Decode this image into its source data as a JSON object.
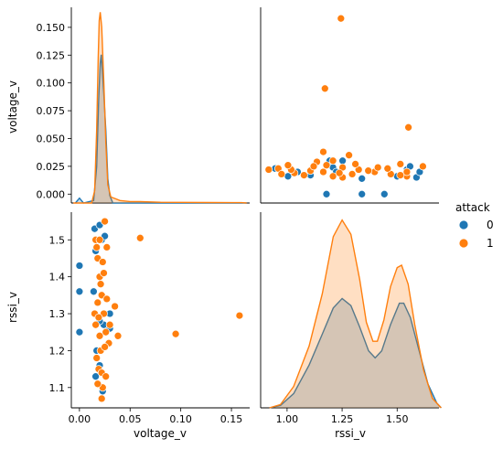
{
  "chart_data": {
    "type": "pairplot",
    "variables": [
      "voltage_v",
      "rssi_v"
    ],
    "hue": "attack",
    "legend": {
      "title": "attack",
      "placement": "right",
      "entries": [
        {
          "label": "0",
          "color": "#1f77b4"
        },
        {
          "label": "1",
          "color": "#ff7f0e"
        }
      ]
    },
    "axes": {
      "voltage_v": {
        "label": "voltage_v",
        "range": [
          -0.008,
          0.168
        ],
        "ticks": [
          {
            "value": 0.0,
            "label": "0.000"
          },
          {
            "value": 0.025,
            "label": "0.025"
          },
          {
            "value": 0.05,
            "label": "0.050"
          },
          {
            "value": 0.075,
            "label": "0.075"
          },
          {
            "value": 0.1,
            "label": "0.100"
          },
          {
            "value": 0.125,
            "label": "0.125"
          },
          {
            "value": 0.15,
            "label": "0.150"
          }
        ],
        "ticks_short": [
          {
            "value": 0.0,
            "label": "0.00"
          },
          {
            "value": 0.05,
            "label": "0.05"
          },
          {
            "value": 0.1,
            "label": "0.10"
          },
          {
            "value": 0.15,
            "label": "0.15"
          }
        ]
      },
      "rssi_v": {
        "label": "rssi_v",
        "range": [
          1.045,
          1.575
        ],
        "kde_range": [
          0.88,
          1.69
        ],
        "ticks": [
          {
            "value": 1.1,
            "label": "1.1"
          },
          {
            "value": 1.2,
            "label": "1.2"
          },
          {
            "value": 1.3,
            "label": "1.3"
          },
          {
            "value": 1.4,
            "label": "1.4"
          },
          {
            "value": 1.5,
            "label": "1.5"
          }
        ],
        "ticks_x": [
          {
            "value": 1.0,
            "label": "1.00"
          },
          {
            "value": 1.25,
            "label": "1.25"
          },
          {
            "value": 1.5,
            "label": "1.50"
          }
        ]
      }
    },
    "kde_voltage": {
      "series": [
        {
          "name": "0",
          "color": "#1f77b4",
          "points": [
            [
              -0.004,
              0.0
            ],
            [
              0.0,
              0.004
            ],
            [
              0.004,
              0.0
            ],
            [
              0.014,
              0.002
            ],
            [
              0.017,
              0.03
            ],
            [
              0.019,
              0.085
            ],
            [
              0.0205,
              0.115
            ],
            [
              0.0215,
              0.122
            ],
            [
              0.0225,
              0.11
            ],
            [
              0.024,
              0.09
            ],
            [
              0.026,
              0.06
            ],
            [
              0.028,
              0.02
            ],
            [
              0.03,
              0.006
            ],
            [
              0.033,
              0.0
            ],
            [
              0.165,
              0.0
            ]
          ]
        },
        {
          "name": "1",
          "color": "#ff7f0e",
          "points": [
            [
              -0.006,
              0.0
            ],
            [
              0.012,
              0.0
            ],
            [
              0.015,
              0.01
            ],
            [
              0.017,
              0.06
            ],
            [
              0.0185,
              0.12
            ],
            [
              0.0195,
              0.15
            ],
            [
              0.0205,
              0.157
            ],
            [
              0.022,
              0.145
            ],
            [
              0.024,
              0.1
            ],
            [
              0.026,
              0.05
            ],
            [
              0.028,
              0.015
            ],
            [
              0.031,
              0.005
            ],
            [
              0.04,
              0.002
            ],
            [
              0.05,
              0.0012
            ],
            [
              0.06,
              0.0012
            ],
            [
              0.08,
              0.0006
            ],
            [
              0.1,
              0.0005
            ],
            [
              0.13,
              0.0004
            ],
            [
              0.16,
              0.0003
            ],
            [
              0.165,
              0.0
            ]
          ]
        }
      ]
    },
    "kde_rssi": {
      "series": [
        {
          "name": "0",
          "color": "#1f77b4",
          "points": [
            [
              0.92,
              0.0
            ],
            [
              0.97,
              0.05
            ],
            [
              1.03,
              0.3
            ],
            [
              1.1,
              0.9
            ],
            [
              1.16,
              1.55
            ],
            [
              1.21,
              2.1
            ],
            [
              1.25,
              2.3
            ],
            [
              1.29,
              2.15
            ],
            [
              1.33,
              1.7
            ],
            [
              1.37,
              1.2
            ],
            [
              1.4,
              1.05
            ],
            [
              1.43,
              1.2
            ],
            [
              1.47,
              1.75
            ],
            [
              1.51,
              2.2
            ],
            [
              1.53,
              2.2
            ],
            [
              1.56,
              1.9
            ],
            [
              1.6,
              1.2
            ],
            [
              1.64,
              0.5
            ],
            [
              1.68,
              0.1
            ],
            [
              1.7,
              0.0
            ]
          ]
        },
        {
          "name": "1",
          "color": "#ff7f0e",
          "points": [
            [
              0.92,
              0.0
            ],
            [
              0.97,
              0.07
            ],
            [
              1.03,
              0.45
            ],
            [
              1.1,
              1.3
            ],
            [
              1.16,
              2.4
            ],
            [
              1.21,
              3.6
            ],
            [
              1.25,
              3.95
            ],
            [
              1.29,
              3.65
            ],
            [
              1.33,
              2.7
            ],
            [
              1.36,
              1.8
            ],
            [
              1.39,
              1.4
            ],
            [
              1.41,
              1.4
            ],
            [
              1.44,
              1.85
            ],
            [
              1.47,
              2.55
            ],
            [
              1.5,
              2.95
            ],
            [
              1.52,
              3.0
            ],
            [
              1.55,
              2.6
            ],
            [
              1.58,
              1.75
            ],
            [
              1.62,
              0.8
            ],
            [
              1.66,
              0.2
            ],
            [
              1.7,
              0.0
            ]
          ]
        }
      ]
    },
    "scatter": {
      "points_0": [
        [
          0.0,
          1.43
        ],
        [
          0.0,
          1.36
        ],
        [
          0.0,
          1.25
        ],
        [
          0.015,
          1.53
        ],
        [
          0.016,
          1.47
        ],
        [
          0.014,
          1.36
        ],
        [
          0.017,
          1.2
        ],
        [
          0.016,
          1.13
        ],
        [
          0.02,
          1.54
        ],
        [
          0.022,
          1.5
        ],
        [
          0.025,
          1.51
        ],
        [
          0.024,
          1.27
        ],
        [
          0.02,
          1.28
        ],
        [
          0.03,
          1.3
        ],
        [
          0.03,
          1.26
        ],
        [
          0.023,
          1.09
        ],
        [
          0.02,
          1.16
        ]
      ],
      "points_1": [
        [
          0.06,
          1.505
        ],
        [
          0.158,
          1.295
        ],
        [
          0.095,
          1.245
        ],
        [
          0.038,
          1.24
        ],
        [
          0.035,
          1.32
        ],
        [
          0.03,
          1.27
        ],
        [
          0.029,
          1.22
        ],
        [
          0.015,
          1.3
        ],
        [
          0.016,
          1.5
        ],
        [
          0.018,
          1.45
        ],
        [
          0.02,
          1.4
        ],
        [
          0.022,
          1.35
        ],
        [
          0.024,
          1.3
        ],
        [
          0.026,
          1.25
        ],
        [
          0.021,
          1.2
        ],
        [
          0.019,
          1.15
        ],
        [
          0.023,
          1.1
        ],
        [
          0.022,
          1.07
        ],
        [
          0.025,
          1.55
        ],
        [
          0.027,
          1.48
        ],
        [
          0.02,
          1.5
        ],
        [
          0.017,
          1.48
        ],
        [
          0.023,
          1.44
        ],
        [
          0.021,
          1.38
        ],
        [
          0.018,
          1.33
        ],
        [
          0.016,
          1.27
        ],
        [
          0.02,
          1.24
        ],
        [
          0.025,
          1.21
        ],
        [
          0.017,
          1.18
        ],
        [
          0.022,
          1.14
        ],
        [
          0.018,
          1.11
        ],
        [
          0.026,
          1.13
        ],
        [
          0.024,
          1.41
        ],
        [
          0.019,
          1.29
        ],
        [
          0.027,
          1.34
        ]
      ]
    }
  }
}
